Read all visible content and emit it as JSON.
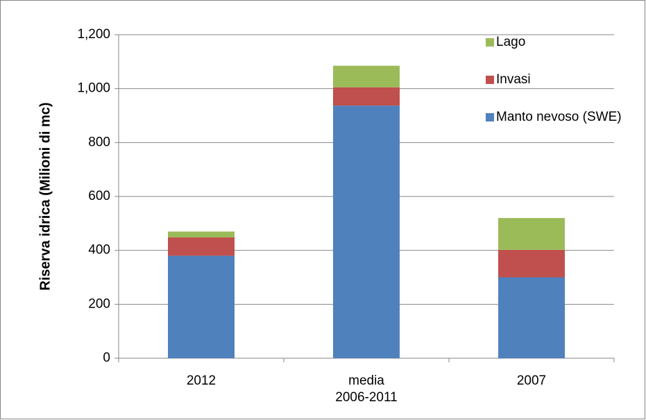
{
  "chart_data": {
    "type": "stacked-bar",
    "y_label": "Riserva idrica (Milioni di mc)",
    "categories": [
      "2012",
      "media\n2006-2011",
      "2007"
    ],
    "series": [
      {
        "name": "Manto nevoso (SWE)",
        "color": "#4f81bd",
        "values": [
          380,
          937,
          300
        ]
      },
      {
        "name": "Invasi",
        "color": "#c0504d",
        "values": [
          68,
          68,
          102
        ]
      },
      {
        "name": "Lago",
        "color": "#9bbb59",
        "values": [
          22,
          80,
          118
        ]
      }
    ],
    "ylim": [
      0,
      1200
    ],
    "yticks": [
      0,
      200,
      400,
      600,
      800,
      {
        "value": 1000,
        "label": "1,000"
      },
      {
        "value": 1200,
        "label": "1,200"
      }
    ],
    "grid": true,
    "legend": "upper right"
  }
}
